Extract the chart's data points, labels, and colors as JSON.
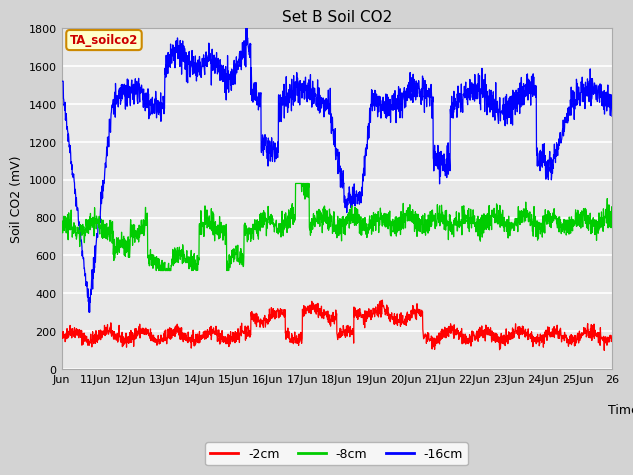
{
  "title": "Set B Soil CO2",
  "ylabel": "Soil CO2 (mV)",
  "xlabel": "Time",
  "annotation": "TA_soilco2",
  "legend_labels": [
    "-2cm",
    "-8cm",
    "-16cm"
  ],
  "legend_colors": [
    "#ff0000",
    "#00cc00",
    "#0000ff"
  ],
  "fig_facecolor": "#d3d3d3",
  "ax_facecolor": "#e8e8e8",
  "x_start": 10,
  "x_end": 26,
  "x_ticks": [
    10,
    11,
    12,
    13,
    14,
    15,
    16,
    17,
    18,
    19,
    20,
    21,
    22,
    23,
    24,
    25,
    26
  ],
  "x_tick_labels": [
    "Jun",
    "11Jun",
    "12Jun",
    "13Jun",
    "14Jun",
    "15Jun",
    "16Jun",
    "17Jun",
    "18Jun",
    "19Jun",
    "20Jun",
    "21Jun",
    "22Jun",
    "23Jun",
    "24Jun",
    "25Jun",
    "26"
  ],
  "ylim": [
    0,
    1800
  ],
  "yticks": [
    0,
    200,
    400,
    600,
    800,
    1000,
    1200,
    1400,
    1600,
    1800
  ],
  "n_points": 2000,
  "seed": 42
}
